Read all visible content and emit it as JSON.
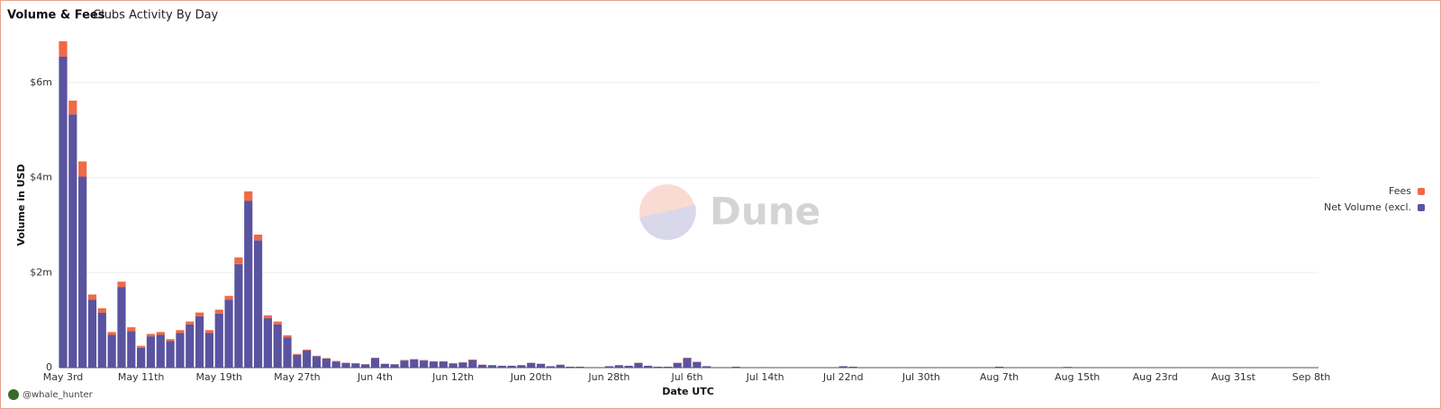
{
  "chart_data": {
    "type": "bar",
    "stacked": true,
    "title": "Volume & Fees",
    "subtitle": "Clubs Activity By Day",
    "y_label": "Volume in USD",
    "x_label": "Date UTC",
    "watermark": "Dune",
    "author": "@whale_hunter",
    "categories": [
      "May 3rd",
      null,
      null,
      null,
      null,
      null,
      null,
      null,
      "May 11th",
      null,
      null,
      null,
      null,
      null,
      null,
      null,
      "May 19th",
      null,
      null,
      null,
      null,
      null,
      null,
      null,
      "May 27th",
      null,
      null,
      null,
      null,
      null,
      null,
      null,
      "Jun 4th",
      null,
      null,
      null,
      null,
      null,
      null,
      null,
      "Jun 12th",
      null,
      null,
      null,
      null,
      null,
      null,
      null,
      "Jun 20th",
      null,
      null,
      null,
      null,
      null,
      null,
      null,
      "Jun 28th",
      null,
      null,
      null,
      null,
      null,
      null,
      null,
      "Jul 6th",
      null,
      null,
      null,
      null,
      null,
      null,
      null,
      "Jul 14th",
      null,
      null,
      null,
      null,
      null,
      null,
      null,
      "Jul 22nd",
      null,
      null,
      null,
      null,
      null,
      null,
      null,
      "Jul 30th",
      null,
      null,
      null,
      null,
      null,
      null,
      null,
      "Aug 7th",
      null,
      null,
      null,
      null,
      null,
      null,
      null,
      "Aug 15th",
      null,
      null,
      null,
      null,
      null,
      null,
      null,
      "Aug 23rd",
      null,
      null,
      null,
      null,
      null,
      null,
      null,
      "Aug 31st",
      null,
      null,
      null,
      null,
      null,
      null,
      null,
      "Sep 8th"
    ],
    "series": [
      {
        "name": "Net Volume (excl.",
        "color": "#5a53a0",
        "values": [
          6550000,
          5330000,
          4020000,
          1430000,
          1160000,
          690000,
          1700000,
          770000,
          420000,
          660000,
          690000,
          560000,
          730000,
          910000,
          1080000,
          730000,
          1140000,
          1430000,
          2180000,
          3510000,
          2680000,
          1040000,
          910000,
          640000,
          270000,
          360000,
          240000,
          190000,
          130000,
          100000,
          90000,
          70000,
          200000,
          80000,
          70000,
          150000,
          170000,
          150000,
          130000,
          130000,
          90000,
          110000,
          160000,
          60000,
          50000,
          40000,
          40000,
          50000,
          100000,
          80000,
          30000,
          60000,
          20000,
          20000,
          10000,
          10000,
          30000,
          50000,
          40000,
          100000,
          40000,
          20000,
          20000,
          100000,
          200000,
          120000,
          30000,
          10000,
          10000,
          20000,
          5000,
          3000,
          10000,
          5000,
          3000,
          3000,
          5000,
          3000,
          3000,
          3000,
          30000,
          20000,
          5000,
          3000,
          3000,
          3000,
          3000,
          3000,
          3000,
          3000,
          3000,
          3000,
          3000,
          3000,
          3000,
          5000,
          20000,
          3000,
          3000,
          3000,
          3000,
          3000,
          5000,
          15000,
          10000,
          3000,
          3000,
          3000,
          3000,
          3000,
          3000,
          3000,
          3000,
          3000,
          3000,
          3000,
          3000,
          3000,
          3000,
          3000,
          3000,
          3000,
          3000,
          3000,
          3000,
          3000,
          3000,
          3000,
          3000
        ]
      },
      {
        "name": "Fees",
        "color": "#ef6a45",
        "values": [
          320000,
          290000,
          320000,
          110000,
          90000,
          60000,
          110000,
          80000,
          40000,
          50000,
          60000,
          40000,
          60000,
          60000,
          80000,
          60000,
          80000,
          80000,
          140000,
          200000,
          120000,
          60000,
          60000,
          40000,
          20000,
          20000,
          10000,
          10000,
          10000,
          5000,
          5000,
          5000,
          10000,
          5000,
          5000,
          10000,
          10000,
          10000,
          5000,
          5000,
          5000,
          5000,
          10000,
          5000,
          5000,
          0,
          0,
          5000,
          5000,
          5000,
          0,
          5000,
          0,
          0,
          0,
          0,
          0,
          5000,
          0,
          5000,
          0,
          0,
          0,
          5000,
          10000,
          5000,
          0,
          0,
          0,
          0,
          0,
          0,
          0,
          0,
          0,
          0,
          0,
          0,
          0,
          0,
          0,
          0,
          0,
          0,
          0,
          0,
          0,
          0,
          0,
          0,
          0,
          0,
          0,
          0,
          0,
          0,
          0,
          0,
          0,
          0,
          0,
          0,
          0,
          0,
          0,
          0,
          0,
          0,
          0,
          0,
          0,
          0,
          0,
          0,
          0,
          0,
          0,
          0,
          0,
          0,
          0,
          0,
          0,
          0,
          0,
          0,
          0,
          0,
          0
        ]
      }
    ],
    "ylim": [
      0,
      7000000
    ],
    "yticks": [
      0,
      {
        "value": 2000000,
        "label": "$2m"
      },
      {
        "value": 4000000,
        "label": "$4m"
      },
      {
        "value": 6000000,
        "label": "$6m"
      }
    ],
    "grid": true,
    "legend": "right"
  }
}
